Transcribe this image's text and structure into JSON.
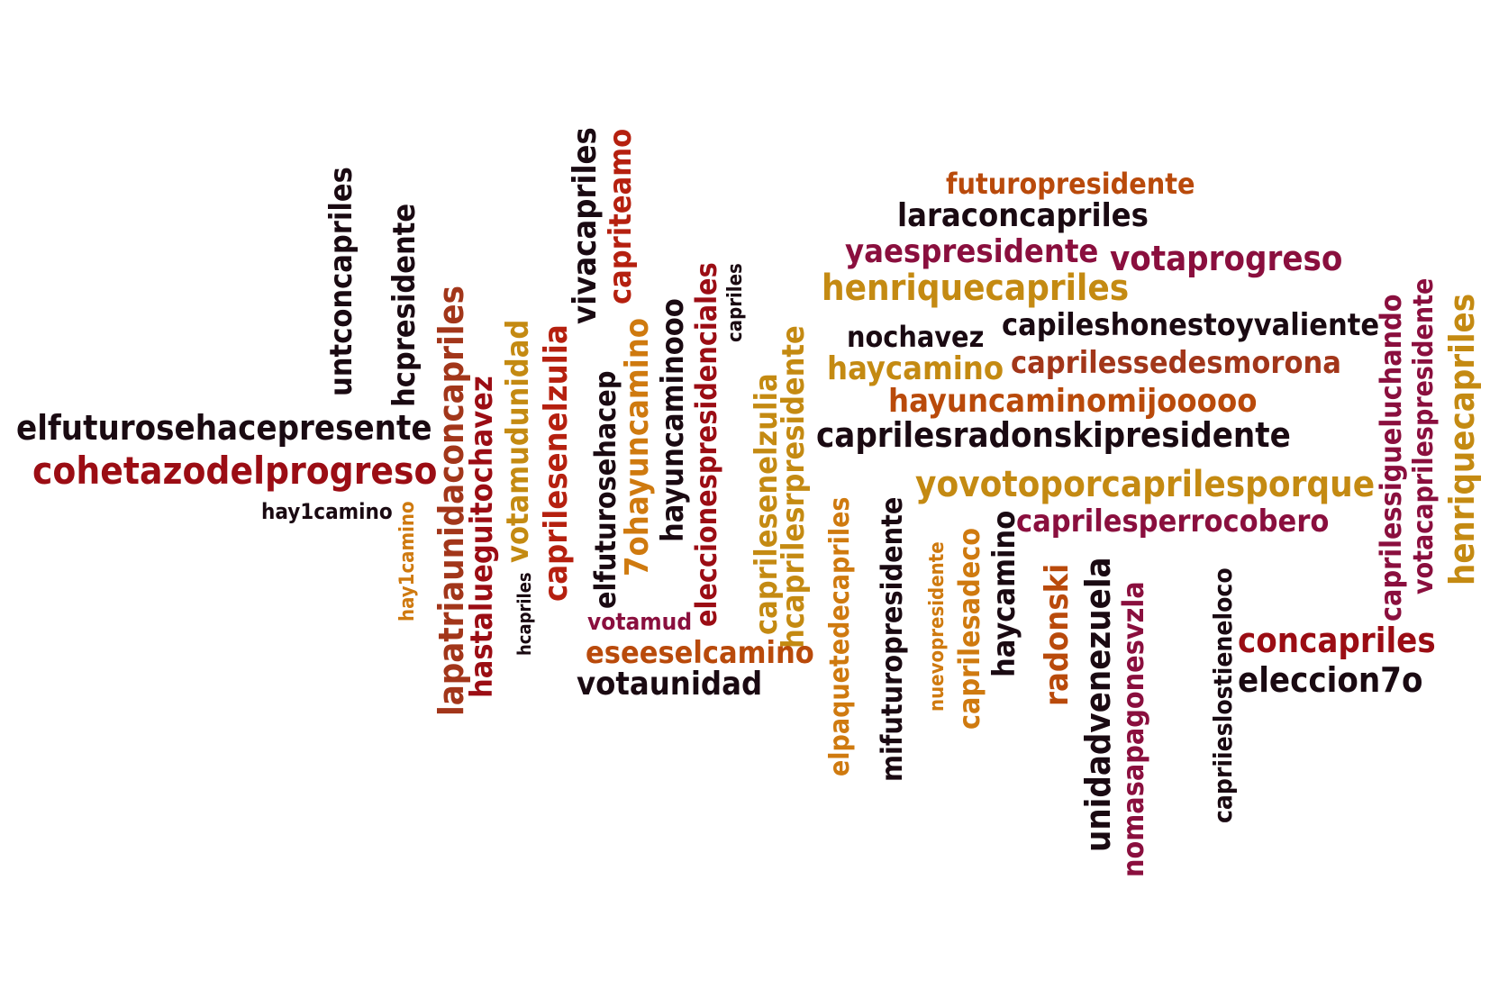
{
  "palette": {
    "black": "#1a0a12",
    "dark_red": "#9b0d14",
    "red": "#b5200f",
    "crimson": "#8a0f3e",
    "orange": "#b94a0b",
    "rust": "#a2361a",
    "gold": "#c48a12",
    "amber": "#cf7a0f"
  },
  "words": [
    {
      "text": "elfuturosehacepresente",
      "color": "#1a0a12"
    },
    {
      "text": "cohetazodelprogreso",
      "color": "#9b0d14"
    },
    {
      "text": "hay1camino",
      "color": "#1a0a12"
    },
    {
      "text": "untconcapriles",
      "color": "#1a0a12"
    },
    {
      "text": "hcpresidente",
      "color": "#1a0a12"
    },
    {
      "text": "hay1camino",
      "color": "#cf7a0f"
    },
    {
      "text": "lapatriaunidaconcapriles",
      "color": "#a2361a"
    },
    {
      "text": "hastalueguitochavez",
      "color": "#9b0d14"
    },
    {
      "text": "votamudunidad",
      "color": "#c48a12"
    },
    {
      "text": "hcapriles",
      "color": "#1a0a12"
    },
    {
      "text": "caprilesenelzulia",
      "color": "#b5200f"
    },
    {
      "text": "vivacapriles",
      "color": "#1a0a12"
    },
    {
      "text": "elfuturosehacep",
      "color": "#1a0a12"
    },
    {
      "text": "capriteamo",
      "color": "#b5200f"
    },
    {
      "text": "7ohayuncamino",
      "color": "#cf7a0f"
    },
    {
      "text": "hayuncaminooo",
      "color": "#1a0a12"
    },
    {
      "text": "votamud",
      "color": "#8a0f3e"
    },
    {
      "text": "eseeselcamino",
      "color": "#b94a0b"
    },
    {
      "text": "votaunidad",
      "color": "#1a0a12"
    },
    {
      "text": "eleccionespresidenciales",
      "color": "#9b0d14"
    },
    {
      "text": "capriles",
      "color": "#1a0a12"
    },
    {
      "text": "caprilesenelzulia",
      "color": "#c48a12"
    },
    {
      "text": "hcaprilesrpresidente",
      "color": "#c48a12"
    },
    {
      "text": "elpaquetedecapriles",
      "color": "#cf7a0f"
    },
    {
      "text": "futuropresidente",
      "color": "#b94a0b"
    },
    {
      "text": "laraconcapriles",
      "color": "#1a0a12"
    },
    {
      "text": "yaespresidente",
      "color": "#8a0f3e"
    },
    {
      "text": "votaprogreso",
      "color": "#8a0f3e"
    },
    {
      "text": "henriquecapriles",
      "color": "#c48a12"
    },
    {
      "text": "nochavez",
      "color": "#1a0a12"
    },
    {
      "text": "capileshonestoyvaliente",
      "color": "#1a0a12"
    },
    {
      "text": "haycamino",
      "color": "#c48a12"
    },
    {
      "text": "caprilessedesmorona",
      "color": "#a2361a"
    },
    {
      "text": "hayuncaminomijooooo",
      "color": "#b94a0b"
    },
    {
      "text": "caprilesradonskipresidente",
      "color": "#1a0a12"
    },
    {
      "text": "yovotoporcaprilesporque",
      "color": "#c48a12"
    },
    {
      "text": "caprilesperrocobero",
      "color": "#8a0f3e"
    },
    {
      "text": "mifuturopresidente",
      "color": "#1a0a12"
    },
    {
      "text": "nuevopresidente",
      "color": "#cf7a0f"
    },
    {
      "text": "caprilesadeco",
      "color": "#cf7a0f"
    },
    {
      "text": "haycamino",
      "color": "#1a0a12"
    },
    {
      "text": "radonski",
      "color": "#b94a0b"
    },
    {
      "text": "unidadvenezuela",
      "color": "#1a0a12"
    },
    {
      "text": "nomasapagonesvzla",
      "color": "#8a0f3e"
    },
    {
      "text": "capriieslostieneloco",
      "color": "#1a0a12"
    },
    {
      "text": "concapriles",
      "color": "#9b0d14"
    },
    {
      "text": "eleccion7o",
      "color": "#1a0a12"
    },
    {
      "text": "caprilessigueluchando",
      "color": "#8a0f3e"
    },
    {
      "text": "votacaprilespresidente",
      "color": "#8a0f3e"
    },
    {
      "text": "henriquecapriles",
      "color": "#c48a12"
    }
  ]
}
